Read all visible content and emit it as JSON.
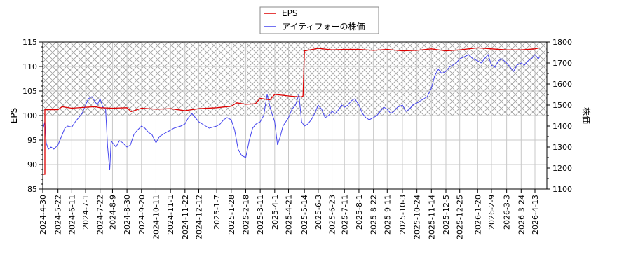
{
  "chart_data": {
    "type": "line",
    "title": "",
    "legend": {
      "position": "top-center",
      "entries": [
        {
          "label": "EPS",
          "color": "#dd0000"
        },
        {
          "label": "アイティフォーの株価",
          "color": "#4444ee"
        }
      ]
    },
    "xlabel": "",
    "ylabel_left": "EPS",
    "ylabel_right": "株価",
    "ylim_left": [
      85,
      115
    ],
    "ylim_right": [
      1100,
      1800
    ],
    "yticks_left": [
      85,
      90,
      95,
      100,
      105,
      110,
      115
    ],
    "yticks_right": [
      1100,
      1200,
      1300,
      1400,
      1500,
      1600,
      1700,
      1800
    ],
    "xticks": [
      "2024-4-30",
      "2024-5-22",
      "2024-6-11",
      "2024-7-1",
      "2024-7-22",
      "2024-8-9",
      "2024-8-30",
      "2024-9-20",
      "2024-10-11",
      "2024-11-1",
      "2024-11-22",
      "2024-12-12",
      "2025-1-7",
      "2025-1-28",
      "2025-2-18",
      "2025-3-11",
      "2025-4-1",
      "2025-4-21",
      "2025-5-14",
      "2025-6-3",
      "2025-6-23",
      "2025-7-11",
      "2025-8-1",
      "2025-8-22",
      "2025-9-11",
      "2025-10-3",
      "2025-10-24",
      "2025-11-14",
      "2025-12-5",
      "2025-12-25",
      "2026-1-20",
      "2026-2-9",
      "2026-3-3",
      "2026-3-24",
      "2026-4-13"
    ],
    "grid": true,
    "hatched_region": {
      "axis": "left",
      "from": 100,
      "to": 115
    },
    "series": [
      {
        "name": "EPS",
        "axis": "left",
        "color": "#dd0000",
        "x": [
          "2024-4-30",
          "2024-5-3",
          "2024-5-3",
          "2024-5-22",
          "2024-5-28",
          "2024-6-11",
          "2024-7-1",
          "2024-7-15",
          "2024-7-22",
          "2024-8-9",
          "2024-8-30",
          "2024-9-5",
          "2024-9-20",
          "2024-10-11",
          "2024-11-1",
          "2024-11-22",
          "2024-12-12",
          "2025-1-7",
          "2025-1-28",
          "2025-2-5",
          "2025-2-18",
          "2025-3-4",
          "2025-3-11",
          "2025-3-25",
          "2025-4-1",
          "2025-4-21",
          "2025-5-6",
          "2025-5-10",
          "2025-5-12",
          "2025-5-14",
          "2025-6-3",
          "2025-6-23",
          "2025-7-11",
          "2025-8-1",
          "2025-8-22",
          "2025-9-11",
          "2025-10-3",
          "2025-10-24",
          "2025-11-14",
          "2025-12-5",
          "2025-12-25",
          "2026-1-20",
          "2026-2-9",
          "2026-3-3",
          "2026-3-24",
          "2026-4-13",
          "2026-4-20"
        ],
        "values": [
          88.0,
          88.0,
          101.2,
          101.2,
          101.8,
          101.5,
          101.7,
          101.8,
          101.6,
          101.5,
          101.6,
          100.8,
          101.5,
          101.3,
          101.4,
          101.0,
          101.4,
          101.6,
          101.9,
          102.6,
          102.3,
          102.4,
          103.5,
          103.2,
          104.3,
          104.0,
          103.8,
          103.8,
          104.0,
          113.2,
          113.7,
          113.4,
          113.5,
          113.5,
          113.3,
          113.5,
          113.2,
          113.3,
          113.6,
          113.2,
          113.4,
          113.8,
          113.6,
          113.4,
          113.4,
          113.6,
          113.8
        ]
      },
      {
        "name": "アイティフォーの株価",
        "axis": "right",
        "color": "#4444ee",
        "x": [
          "2024-4-30",
          "2024-5-3",
          "2024-5-5",
          "2024-5-8",
          "2024-5-12",
          "2024-5-16",
          "2024-5-22",
          "2024-5-27",
          "2024-6-1",
          "2024-6-5",
          "2024-6-11",
          "2024-6-16",
          "2024-6-21",
          "2024-6-26",
          "2024-7-1",
          "2024-7-5",
          "2024-7-10",
          "2024-7-14",
          "2024-7-18",
          "2024-7-22",
          "2024-7-26",
          "2024-7-30",
          "2024-8-2",
          "2024-8-5",
          "2024-8-7",
          "2024-8-9",
          "2024-8-14",
          "2024-8-19",
          "2024-8-24",
          "2024-8-30",
          "2024-9-4",
          "2024-9-9",
          "2024-9-14",
          "2024-9-20",
          "2024-9-25",
          "2024-9-30",
          "2024-10-5",
          "2024-10-11",
          "2024-10-16",
          "2024-10-21",
          "2024-10-26",
          "2024-11-1",
          "2024-11-6",
          "2024-11-11",
          "2024-11-16",
          "2024-11-22",
          "2024-11-27",
          "2024-12-2",
          "2024-12-7",
          "2024-12-12",
          "2024-12-17",
          "2024-12-22",
          "2024-12-27",
          "2025-1-7",
          "2025-1-12",
          "2025-1-17",
          "2025-1-22",
          "2025-1-28",
          "2025-2-2",
          "2025-2-7",
          "2025-2-12",
          "2025-2-18",
          "2025-2-23",
          "2025-2-28",
          "2025-3-5",
          "2025-3-11",
          "2025-3-16",
          "2025-3-21",
          "2025-3-26",
          "2025-4-1",
          "2025-4-5",
          "2025-4-9",
          "2025-4-13",
          "2025-4-17",
          "2025-4-21",
          "2025-4-26",
          "2025-5-1",
          "2025-5-6",
          "2025-5-10",
          "2025-5-14",
          "2025-5-19",
          "2025-5-24",
          "2025-5-29",
          "2025-6-3",
          "2025-6-8",
          "2025-6-13",
          "2025-6-18",
          "2025-6-23",
          "2025-6-28",
          "2025-7-3",
          "2025-7-7",
          "2025-7-11",
          "2025-7-16",
          "2025-7-21",
          "2025-7-26",
          "2025-8-1",
          "2025-8-6",
          "2025-8-11",
          "2025-8-16",
          "2025-8-22",
          "2025-8-27",
          "2025-9-1",
          "2025-9-6",
          "2025-9-11",
          "2025-9-16",
          "2025-9-21",
          "2025-9-26",
          "2025-10-3",
          "2025-10-8",
          "2025-10-13",
          "2025-10-18",
          "2025-10-24",
          "2025-10-29",
          "2025-11-3",
          "2025-11-8",
          "2025-11-14",
          "2025-11-19",
          "2025-11-24",
          "2025-11-29",
          "2025-12-5",
          "2025-12-10",
          "2025-12-15",
          "2025-12-20",
          "2025-12-25",
          "2026-1-1",
          "2026-1-7",
          "2026-1-13",
          "2026-1-20",
          "2026-1-25",
          "2026-1-30",
          "2026-2-4",
          "2026-2-9",
          "2026-2-14",
          "2026-2-19",
          "2026-2-24",
          "2026-3-3",
          "2026-3-8",
          "2026-3-13",
          "2026-3-18",
          "2026-3-24",
          "2026-3-29",
          "2026-4-3",
          "2026-4-8",
          "2026-4-13",
          "2026-4-18",
          "2026-4-20"
        ],
        "values": [
          1385,
          1420,
          1320,
          1290,
          1300,
          1290,
          1310,
          1350,
          1390,
          1400,
          1395,
          1420,
          1440,
          1460,
          1500,
          1530,
          1540,
          1520,
          1500,
          1530,
          1490,
          1480,
          1300,
          1190,
          1330,
          1320,
          1300,
          1330,
          1320,
          1300,
          1310,
          1360,
          1380,
          1400,
          1390,
          1370,
          1360,
          1320,
          1350,
          1360,
          1370,
          1380,
          1390,
          1395,
          1400,
          1410,
          1440,
          1460,
          1440,
          1420,
          1410,
          1400,
          1390,
          1400,
          1410,
          1430,
          1440,
          1430,
          1380,
          1290,
          1260,
          1250,
          1330,
          1390,
          1410,
          1420,
          1450,
          1550,
          1480,
          1420,
          1310,
          1350,
          1400,
          1420,
          1440,
          1480,
          1500,
          1550,
          1420,
          1400,
          1410,
          1430,
          1460,
          1500,
          1480,
          1440,
          1450,
          1470,
          1460,
          1480,
          1500,
          1490,
          1500,
          1520,
          1530,
          1500,
          1460,
          1440,
          1430,
          1440,
          1450,
          1470,
          1490,
          1480,
          1460,
          1470,
          1490,
          1500,
          1470,
          1480,
          1500,
          1510,
          1520,
          1530,
          1540,
          1580,
          1640,
          1670,
          1650,
          1660,
          1680,
          1690,
          1700,
          1720,
          1730,
          1740,
          1720,
          1710,
          1700,
          1720,
          1740,
          1690,
          1680,
          1710,
          1720,
          1700,
          1680,
          1660,
          1690,
          1700,
          1690,
          1710,
          1720,
          1740,
          1720,
          1730
        ]
      }
    ]
  }
}
